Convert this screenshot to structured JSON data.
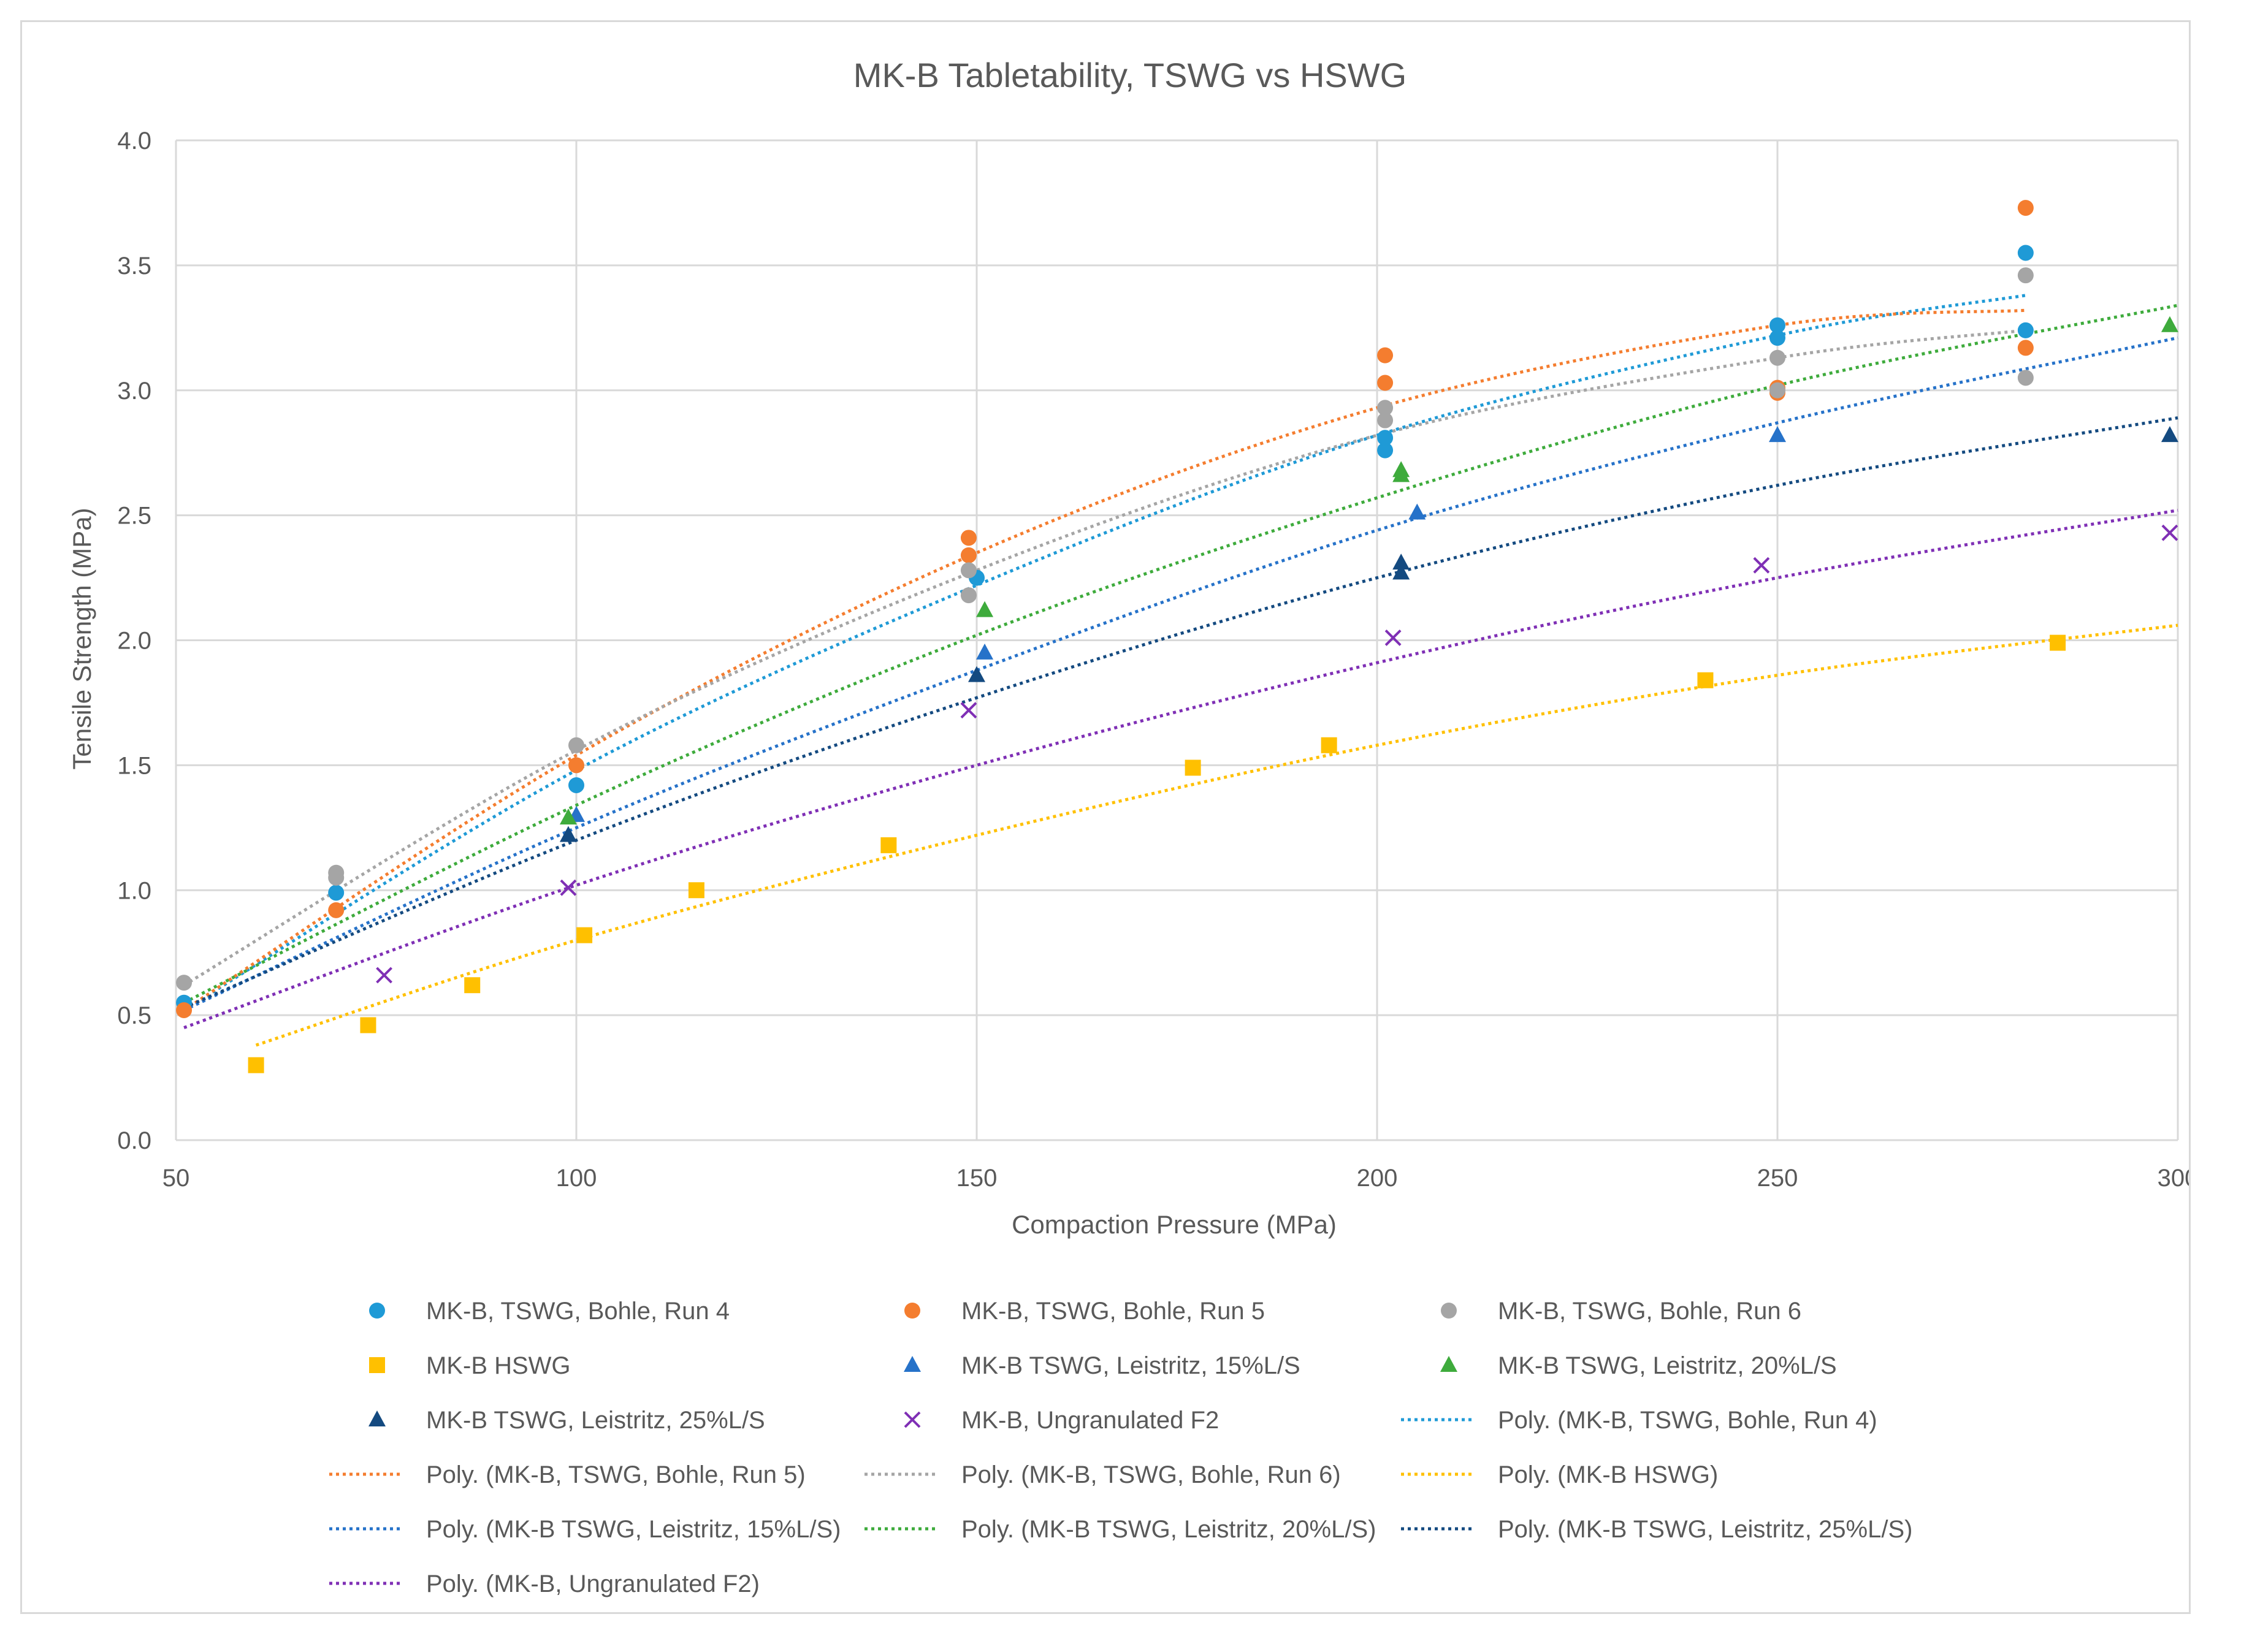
{
  "chart_data": {
    "type": "scatter",
    "title": "MK-B Tabletability, TSWG vs HSWG",
    "xlabel": "Compaction Pressure (MPa)",
    "ylabel": "Tensile Strength (MPa)",
    "xlim": [
      50,
      300
    ],
    "ylim": [
      0,
      4
    ],
    "x_ticks": [
      50,
      100,
      150,
      200,
      250,
      300
    ],
    "y_ticks": [
      0.0,
      0.5,
      1.0,
      1.5,
      2.0,
      2.5,
      3.0,
      3.5,
      4.0
    ],
    "grid": true,
    "legend_position": "bottom",
    "series": [
      {
        "name": "MK-B, TSWG, Bohle, Run 4",
        "marker": "circle",
        "color": "#1f9ad6",
        "points": [
          [
            51,
            0.55
          ],
          [
            70,
            0.99
          ],
          [
            100,
            1.42
          ],
          [
            150,
            2.25
          ],
          [
            201,
            2.76
          ],
          [
            201,
            2.81
          ],
          [
            250,
            3.26
          ],
          [
            250,
            3.21
          ],
          [
            281,
            3.55
          ],
          [
            281,
            3.24
          ]
        ]
      },
      {
        "name": "MK-B, TSWG, Bohle, Run 5",
        "marker": "circle",
        "color": "#f47d2f",
        "points": [
          [
            51,
            0.52
          ],
          [
            70,
            0.92
          ],
          [
            100,
            1.5
          ],
          [
            149,
            2.41
          ],
          [
            149,
            2.34
          ],
          [
            201,
            3.14
          ],
          [
            201,
            3.03
          ],
          [
            250,
            3.01
          ],
          [
            250,
            2.99
          ],
          [
            281,
            3.73
          ],
          [
            281,
            3.17
          ]
        ]
      },
      {
        "name": "MK-B, TSWG, Bohle, Run 6",
        "marker": "circle",
        "color": "#a5a5a5",
        "points": [
          [
            51,
            0.63
          ],
          [
            70,
            1.07
          ],
          [
            70,
            1.05
          ],
          [
            100,
            1.58
          ],
          [
            149,
            2.28
          ],
          [
            149,
            2.18
          ],
          [
            201,
            2.93
          ],
          [
            201,
            2.88
          ],
          [
            250,
            3.13
          ],
          [
            250,
            3.0
          ],
          [
            281,
            3.46
          ],
          [
            281,
            3.05
          ]
        ]
      },
      {
        "name": "MK-B HSWG",
        "marker": "square",
        "color": "#ffc000",
        "points": [
          [
            60,
            0.3
          ],
          [
            74,
            0.46
          ],
          [
            87,
            0.62
          ],
          [
            101,
            0.82
          ],
          [
            115,
            1.0
          ],
          [
            139,
            1.18
          ],
          [
            177,
            1.49
          ],
          [
            194,
            1.58
          ],
          [
            241,
            1.84
          ],
          [
            285,
            1.99
          ]
        ]
      },
      {
        "name": "MK-B TSWG, Leistritz, 15%L/S",
        "marker": "triangle",
        "color": "#2672c9",
        "points": [
          [
            100,
            1.3
          ],
          [
            151,
            1.95
          ],
          [
            205,
            2.51
          ],
          [
            250,
            2.82
          ]
        ]
      },
      {
        "name": "MK-B TSWG, Leistritz, 20%L/S",
        "marker": "triangle",
        "color": "#3eab3c",
        "points": [
          [
            99,
            1.29
          ],
          [
            151,
            2.12
          ],
          [
            203,
            2.68
          ],
          [
            203,
            2.66
          ],
          [
            299,
            3.26
          ]
        ]
      },
      {
        "name": "MK-B TSWG, Leistritz, 25%L/S",
        "marker": "triangle",
        "color": "#144a80",
        "points": [
          [
            99,
            1.22
          ],
          [
            150,
            1.86
          ],
          [
            203,
            2.31
          ],
          [
            203,
            2.27
          ],
          [
            299,
            2.82
          ]
        ]
      },
      {
        "name": "MK-B, Ungranulated F2",
        "marker": "x",
        "color": "#7f2fb5",
        "points": [
          [
            76,
            0.66
          ],
          [
            99,
            1.01
          ],
          [
            149,
            1.72
          ],
          [
            202,
            2.01
          ],
          [
            248,
            2.3
          ],
          [
            299,
            2.43
          ]
        ]
      }
    ],
    "trendlines": [
      {
        "name": "Poly. (MK-B, TSWG, Bohle, Run 4)",
        "color": "#1f9ad6",
        "x_range": [
          51,
          281
        ],
        "points": [
          [
            51,
            0.52
          ],
          [
            100,
            1.48
          ],
          [
            150,
            2.22
          ],
          [
            200,
            2.82
          ],
          [
            250,
            3.22
          ],
          [
            281,
            3.38
          ]
        ]
      },
      {
        "name": "Poly. (MK-B, TSWG, Bohle, Run 5)",
        "color": "#f47d2f",
        "x_range": [
          51,
          281
        ],
        "points": [
          [
            51,
            0.52
          ],
          [
            100,
            1.54
          ],
          [
            150,
            2.35
          ],
          [
            200,
            2.93
          ],
          [
            250,
            3.26
          ],
          [
            281,
            3.32
          ]
        ]
      },
      {
        "name": "Poly. (MK-B, TSWG, Bohle, Run 6)",
        "color": "#a5a5a5",
        "x_range": [
          51,
          281
        ],
        "points": [
          [
            51,
            0.62
          ],
          [
            100,
            1.56
          ],
          [
            150,
            2.28
          ],
          [
            200,
            2.82
          ],
          [
            250,
            3.13
          ],
          [
            281,
            3.24
          ]
        ]
      },
      {
        "name": "Poly. (MK-B HSWG)",
        "color": "#ffc000",
        "x_range": [
          60,
          300
        ],
        "points": [
          [
            60,
            0.38
          ],
          [
            100,
            0.8
          ],
          [
            150,
            1.22
          ],
          [
            200,
            1.58
          ],
          [
            250,
            1.86
          ],
          [
            300,
            2.06
          ]
        ]
      },
      {
        "name": "Poly. (MK-B TSWG, Leistritz, 15%L/S)",
        "color": "#2672c9",
        "x_range": [
          51,
          300
        ],
        "points": [
          [
            51,
            0.52
          ],
          [
            100,
            1.25
          ],
          [
            150,
            1.88
          ],
          [
            200,
            2.44
          ],
          [
            250,
            2.87
          ],
          [
            300,
            3.21
          ]
        ]
      },
      {
        "name": "Poly. (MK-B TSWG, Leistritz, 20%L/S)",
        "color": "#3eab3c",
        "x_range": [
          51,
          300
        ],
        "points": [
          [
            51,
            0.55
          ],
          [
            100,
            1.34
          ],
          [
            150,
            2.02
          ],
          [
            200,
            2.57
          ],
          [
            250,
            3.02
          ],
          [
            300,
            3.34
          ]
        ]
      },
      {
        "name": "Poly. (MK-B TSWG, Leistritz, 25%L/S)",
        "color": "#144a80",
        "x_range": [
          51,
          300
        ],
        "points": [
          [
            51,
            0.53
          ],
          [
            100,
            1.2
          ],
          [
            150,
            1.77
          ],
          [
            200,
            2.25
          ],
          [
            250,
            2.62
          ],
          [
            300,
            2.89
          ]
        ]
      },
      {
        "name": "Poly. (MK-B, Ungranulated F2)",
        "color": "#7f2fb5",
        "x_range": [
          51,
          300
        ],
        "points": [
          [
            51,
            0.45
          ],
          [
            100,
            1.02
          ],
          [
            150,
            1.5
          ],
          [
            200,
            1.91
          ],
          [
            250,
            2.25
          ],
          [
            300,
            2.52
          ]
        ]
      }
    ]
  }
}
